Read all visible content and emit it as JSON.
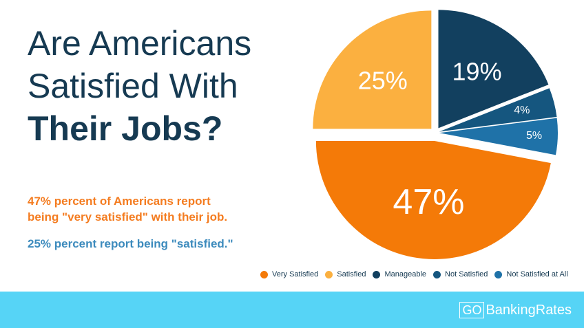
{
  "title": {
    "line1": "Are Americans",
    "line2": "Satisfied With",
    "line3": "Their Jobs?"
  },
  "description": {
    "line1": "47% percent of Americans report",
    "line2": "being \"very satisfied\" with their job.",
    "line3": "25% percent report being \"satisfied.\""
  },
  "chart_data": {
    "type": "pie",
    "title": "",
    "labels": [
      "Very Satisfied",
      "Satisfied",
      "Manageable",
      "Not Satisfied",
      "Not Satisfied at All"
    ],
    "values": [
      47,
      25,
      19,
      4,
      5
    ],
    "value_labels": [
      "47%",
      "25%",
      "19%",
      "4%",
      "5%"
    ],
    "colors": [
      "#f47a08",
      "#fbb040",
      "#12405f",
      "#15567f",
      "#1f72a8"
    ],
    "legend_placement": "bottom"
  },
  "brand": {
    "go": "GO",
    "name": "BankingRates"
  }
}
